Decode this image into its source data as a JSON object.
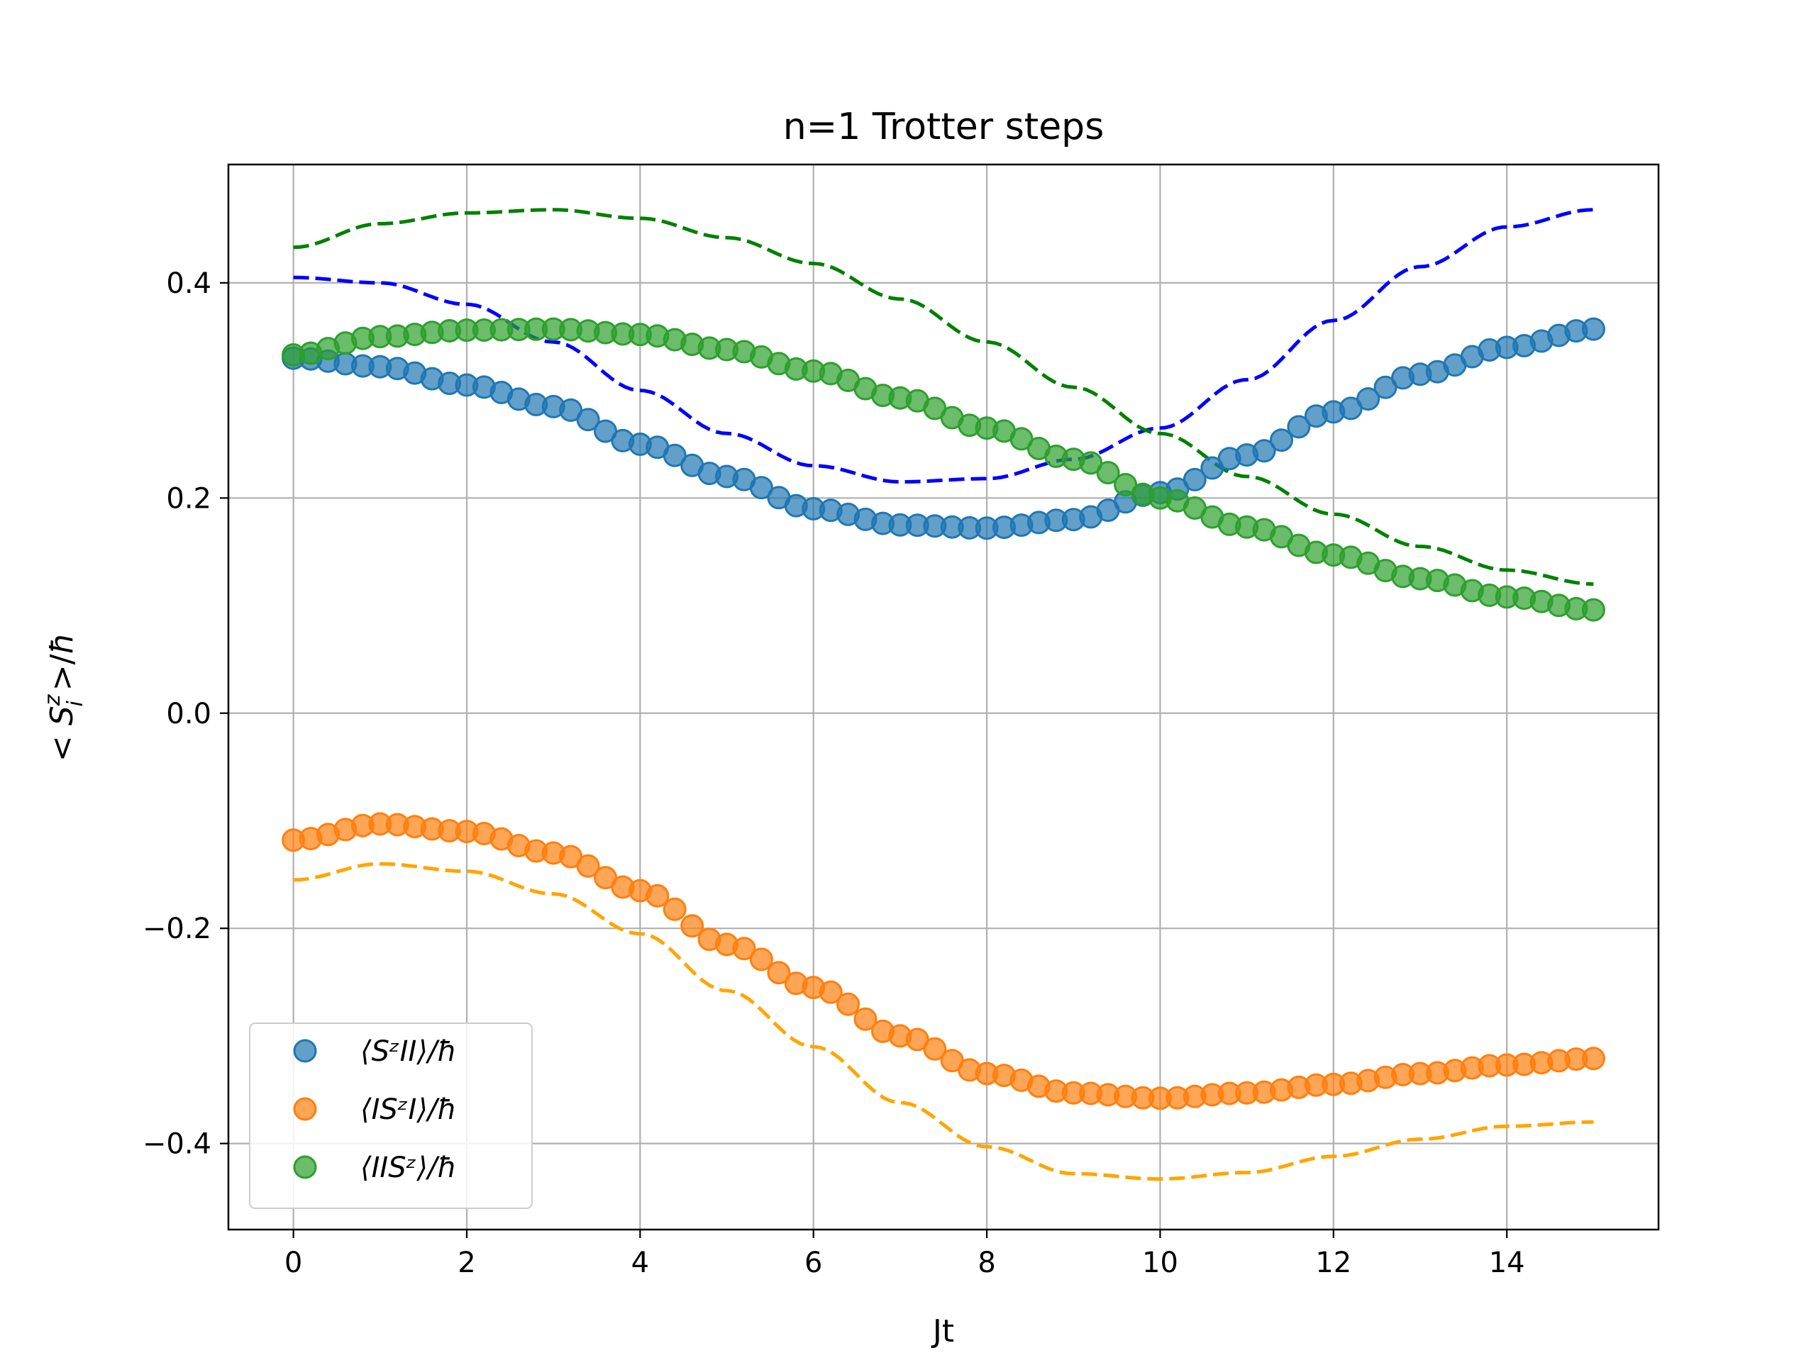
{
  "chart_data": {
    "type": "scatter",
    "title": "n=1 Trotter steps",
    "xlabel": "Jt",
    "ylabel": "< S_i^z >/ħ",
    "xlim": [
      -0.75,
      15.75
    ],
    "ylim": [
      -0.48,
      0.51
    ],
    "x_ticks": [
      0,
      2,
      4,
      6,
      8,
      10,
      12,
      14
    ],
    "x_tick_labels": [
      "0",
      "2",
      "4",
      "6",
      "8",
      "10",
      "12",
      "14"
    ],
    "y_ticks": [
      -0.4,
      -0.2,
      0.0,
      0.2,
      0.4
    ],
    "y_tick_labels": [
      "−0.4",
      "−0.2",
      "0.0",
      "0.2",
      "0.4"
    ],
    "grid": true,
    "legend_position": "lower-left",
    "x_range": [
      0,
      15
    ],
    "series": [
      {
        "name": "⟨SᶻII⟩/ħ",
        "color": "#1f77b4",
        "marker": "circle",
        "keypoints": [
          [
            0,
            0.33
          ],
          [
            1,
            0.322
          ],
          [
            2,
            0.305
          ],
          [
            3,
            0.285
          ],
          [
            4,
            0.25
          ],
          [
            5,
            0.22
          ],
          [
            6,
            0.19
          ],
          [
            7,
            0.175
          ],
          [
            8,
            0.172
          ],
          [
            9,
            0.18
          ],
          [
            10,
            0.205
          ],
          [
            11,
            0.24
          ],
          [
            12,
            0.28
          ],
          [
            13,
            0.315
          ],
          [
            14,
            0.34
          ],
          [
            15,
            0.357
          ]
        ]
      },
      {
        "name": "⟨ISᶻI⟩/ħ",
        "color": "#ff7f0e",
        "marker": "circle",
        "keypoints": [
          [
            0,
            -0.118
          ],
          [
            1,
            -0.103
          ],
          [
            2,
            -0.11
          ],
          [
            3,
            -0.13
          ],
          [
            4,
            -0.165
          ],
          [
            5,
            -0.215
          ],
          [
            6,
            -0.255
          ],
          [
            7,
            -0.3
          ],
          [
            8,
            -0.335
          ],
          [
            9,
            -0.353
          ],
          [
            10,
            -0.358
          ],
          [
            11,
            -0.353
          ],
          [
            12,
            -0.345
          ],
          [
            13,
            -0.335
          ],
          [
            14,
            -0.327
          ],
          [
            15,
            -0.321
          ]
        ]
      },
      {
        "name": "⟨IISᶻ⟩/ħ",
        "color": "#2ca02c",
        "marker": "circle",
        "keypoints": [
          [
            0,
            0.333
          ],
          [
            1,
            0.35
          ],
          [
            2,
            0.356
          ],
          [
            3,
            0.357
          ],
          [
            4,
            0.352
          ],
          [
            5,
            0.338
          ],
          [
            6,
            0.318
          ],
          [
            7,
            0.293
          ],
          [
            8,
            0.265
          ],
          [
            9,
            0.236
          ],
          [
            10,
            0.2
          ],
          [
            11,
            0.173
          ],
          [
            12,
            0.147
          ],
          [
            13,
            0.125
          ],
          [
            14,
            0.108
          ],
          [
            15,
            0.096
          ]
        ]
      },
      {
        "name": "",
        "color": "#0000ff",
        "style": "dashed",
        "keypoints": [
          [
            0,
            0.405
          ],
          [
            1,
            0.4
          ],
          [
            2,
            0.38
          ],
          [
            3,
            0.345
          ],
          [
            4,
            0.3
          ],
          [
            5,
            0.26
          ],
          [
            6,
            0.23
          ],
          [
            7,
            0.215
          ],
          [
            8,
            0.218
          ],
          [
            9,
            0.236
          ],
          [
            10,
            0.265
          ],
          [
            11,
            0.31
          ],
          [
            12,
            0.365
          ],
          [
            13,
            0.415
          ],
          [
            14,
            0.452
          ],
          [
            15,
            0.468
          ]
        ]
      },
      {
        "name": "",
        "color": "#ffa500",
        "style": "dashed",
        "keypoints": [
          [
            0,
            -0.155
          ],
          [
            1,
            -0.14
          ],
          [
            2,
            -0.147
          ],
          [
            3,
            -0.168
          ],
          [
            4,
            -0.205
          ],
          [
            5,
            -0.258
          ],
          [
            6,
            -0.31
          ],
          [
            7,
            -0.362
          ],
          [
            8,
            -0.403
          ],
          [
            9,
            -0.428
          ],
          [
            10,
            -0.433
          ],
          [
            11,
            -0.427
          ],
          [
            12,
            -0.412
          ],
          [
            13,
            -0.396
          ],
          [
            14,
            -0.384
          ],
          [
            15,
            -0.38
          ]
        ]
      },
      {
        "name": "",
        "color": "#008000",
        "style": "dashed",
        "keypoints": [
          [
            0,
            0.433
          ],
          [
            1,
            0.455
          ],
          [
            2,
            0.465
          ],
          [
            3,
            0.468
          ],
          [
            4,
            0.46
          ],
          [
            5,
            0.442
          ],
          [
            6,
            0.418
          ],
          [
            7,
            0.385
          ],
          [
            8,
            0.345
          ],
          [
            9,
            0.303
          ],
          [
            10,
            0.26
          ],
          [
            11,
            0.22
          ],
          [
            12,
            0.185
          ],
          [
            13,
            0.155
          ],
          [
            14,
            0.133
          ],
          [
            15,
            0.12
          ]
        ]
      }
    ]
  }
}
